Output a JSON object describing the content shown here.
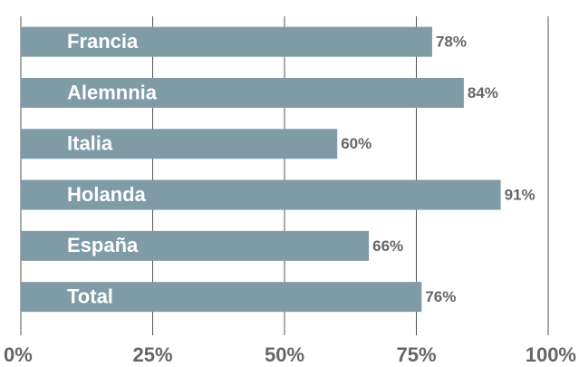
{
  "chart_data": {
    "type": "barh",
    "categories": [
      "Francia",
      "Alemnnia",
      "Italia",
      "Holanda",
      "España",
      "Total"
    ],
    "values": [
      78,
      84,
      60,
      91,
      66,
      76
    ],
    "value_labels": [
      "78%",
      "84%",
      "60%",
      "91%",
      "66%",
      "76%"
    ],
    "color": "#7f9ca6",
    "xlim": [
      0,
      100
    ],
    "xticks": [
      {
        "value": 0,
        "label": "0%"
      },
      {
        "value": 25,
        "label": "25%"
      },
      {
        "value": 50,
        "label": "50%"
      },
      {
        "value": 75,
        "label": "75%"
      },
      {
        "value": 100,
        "label": "100%"
      }
    ],
    "grid": true
  }
}
